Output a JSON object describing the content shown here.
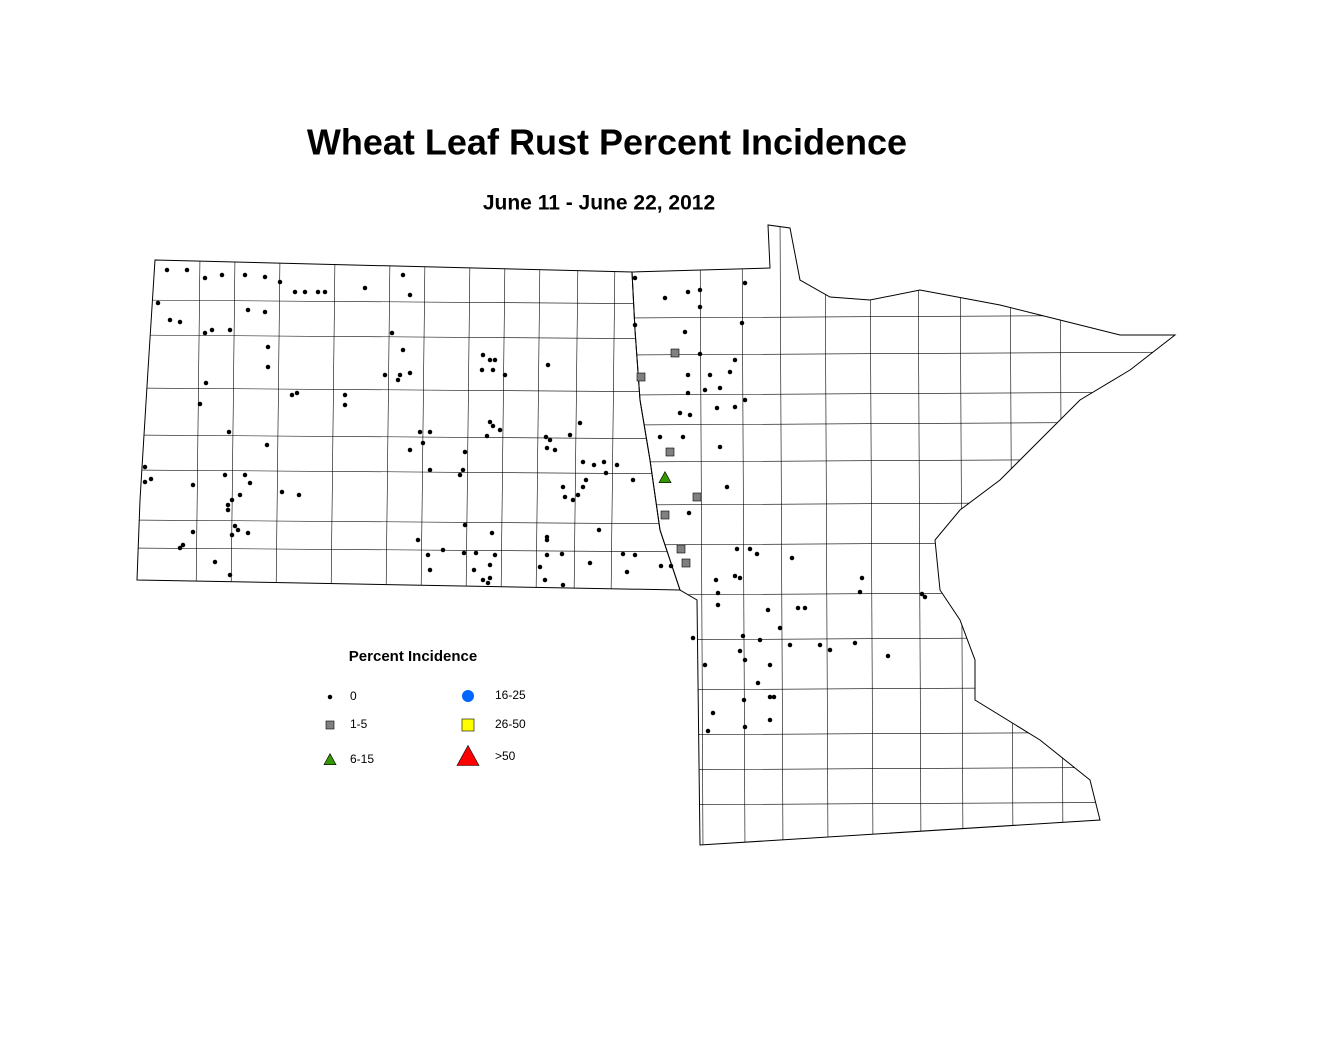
{
  "title": "Wheat Leaf Rust Percent Incidence",
  "subtitle": "June 11 - June 22, 2012",
  "legend": {
    "title": "Percent Incidence",
    "items": [
      {
        "label": "0",
        "shape": "dot",
        "color": "#000000"
      },
      {
        "label": "1-5",
        "shape": "square",
        "color": "#808080"
      },
      {
        "label": "6-15",
        "shape": "triangle",
        "color": "#339900"
      },
      {
        "label": "16-25",
        "shape": "circle",
        "color": "#0066ff"
      },
      {
        "label": "26-50",
        "shape": "square",
        "color": "#ffff00"
      },
      {
        "label": ">50",
        "shape": "triangle",
        "color": "#ff0000"
      }
    ]
  }
}
